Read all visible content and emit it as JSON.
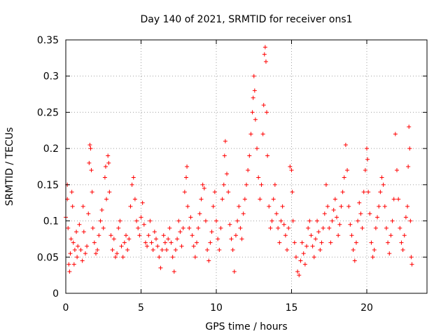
{
  "chart_data": {
    "type": "scatter",
    "title": "Day 140 of 2021, SRMTID for receiver ons1",
    "xlabel": "GPS time / hours",
    "ylabel": "SRMTID / TECUs",
    "xlim": [
      0,
      24
    ],
    "ylim": [
      0,
      0.35
    ],
    "xticks": [
      0,
      5,
      10,
      15,
      20
    ],
    "xtick_labels": [
      "0",
      "5",
      "10",
      "15",
      "20"
    ],
    "yticks": [
      0,
      0.05,
      0.1,
      0.15,
      0.2,
      0.25,
      0.3,
      0.35
    ],
    "ytick_labels": [
      "0",
      "0.05",
      "0.1",
      "0.15",
      "0.2",
      "0.25",
      "0.3",
      "0.35"
    ],
    "grid": true,
    "marker": "+",
    "color": "#ff0000",
    "series": [
      {
        "name": "SRMTID",
        "points": [
          [
            0.0,
            0.105
          ],
          [
            0.1,
            0.13
          ],
          [
            0.1,
            0.15
          ],
          [
            0.15,
            0.09
          ],
          [
            0.2,
            0.04
          ],
          [
            0.25,
            0.03
          ],
          [
            0.3,
            0.055
          ],
          [
            0.35,
            0.075
          ],
          [
            0.4,
            0.14
          ],
          [
            0.45,
            0.12
          ],
          [
            0.5,
            0.07
          ],
          [
            0.55,
            0.04
          ],
          [
            0.6,
            0.06
          ],
          [
            0.7,
            0.085
          ],
          [
            0.75,
            0.05
          ],
          [
            0.8,
            0.065
          ],
          [
            0.9,
            0.095
          ],
          [
            1.0,
            0.06
          ],
          [
            1.1,
            0.045
          ],
          [
            1.15,
            0.12
          ],
          [
            1.2,
            0.085
          ],
          [
            1.3,
            0.055
          ],
          [
            1.4,
            0.065
          ],
          [
            1.5,
            0.11
          ],
          [
            1.55,
            0.18
          ],
          [
            1.6,
            0.205
          ],
          [
            1.65,
            0.2
          ],
          [
            1.7,
            0.17
          ],
          [
            1.75,
            0.14
          ],
          [
            1.8,
            0.09
          ],
          [
            1.9,
            0.07
          ],
          [
            2.0,
            0.055
          ],
          [
            2.1,
            0.06
          ],
          [
            2.2,
            0.08
          ],
          [
            2.3,
            0.1
          ],
          [
            2.4,
            0.115
          ],
          [
            2.5,
            0.09
          ],
          [
            2.6,
            0.16
          ],
          [
            2.65,
            0.175
          ],
          [
            2.7,
            0.13
          ],
          [
            2.8,
            0.19
          ],
          [
            2.85,
            0.18
          ],
          [
            2.9,
            0.14
          ],
          [
            3.0,
            0.08
          ],
          [
            3.1,
            0.06
          ],
          [
            3.2,
            0.075
          ],
          [
            3.3,
            0.05
          ],
          [
            3.4,
            0.055
          ],
          [
            3.5,
            0.09
          ],
          [
            3.6,
            0.1
          ],
          [
            3.7,
            0.065
          ],
          [
            3.8,
            0.05
          ],
          [
            3.9,
            0.07
          ],
          [
            4.0,
            0.08
          ],
          [
            4.1,
            0.06
          ],
          [
            4.2,
            0.075
          ],
          [
            4.3,
            0.12
          ],
          [
            4.4,
            0.15
          ],
          [
            4.5,
            0.16
          ],
          [
            4.6,
            0.13
          ],
          [
            4.7,
            0.1
          ],
          [
            4.8,
            0.09
          ],
          [
            4.9,
            0.08
          ],
          [
            5.0,
            0.105
          ],
          [
            5.1,
            0.125
          ],
          [
            5.2,
            0.095
          ],
          [
            5.3,
            0.07
          ],
          [
            5.4,
            0.065
          ],
          [
            5.5,
            0.08
          ],
          [
            5.6,
            0.1
          ],
          [
            5.7,
            0.07
          ],
          [
            5.8,
            0.06
          ],
          [
            5.9,
            0.085
          ],
          [
            6.0,
            0.075
          ],
          [
            6.1,
            0.065
          ],
          [
            6.2,
            0.05
          ],
          [
            6.3,
            0.035
          ],
          [
            6.4,
            0.06
          ],
          [
            6.5,
            0.08
          ],
          [
            6.6,
            0.07
          ],
          [
            6.7,
            0.06
          ],
          [
            6.8,
            0.075
          ],
          [
            6.9,
            0.09
          ],
          [
            7.0,
            0.07
          ],
          [
            7.1,
            0.05
          ],
          [
            7.2,
            0.03
          ],
          [
            7.3,
            0.06
          ],
          [
            7.4,
            0.075
          ],
          [
            7.5,
            0.1
          ],
          [
            7.6,
            0.085
          ],
          [
            7.7,
            0.065
          ],
          [
            7.8,
            0.09
          ],
          [
            7.9,
            0.14
          ],
          [
            8.0,
            0.16
          ],
          [
            8.05,
            0.175
          ],
          [
            8.1,
            0.12
          ],
          [
            8.2,
            0.09
          ],
          [
            8.3,
            0.105
          ],
          [
            8.4,
            0.08
          ],
          [
            8.5,
            0.065
          ],
          [
            8.6,
            0.05
          ],
          [
            8.7,
            0.07
          ],
          [
            8.8,
            0.09
          ],
          [
            8.9,
            0.11
          ],
          [
            9.0,
            0.13
          ],
          [
            9.1,
            0.15
          ],
          [
            9.2,
            0.145
          ],
          [
            9.3,
            0.1
          ],
          [
            9.4,
            0.06
          ],
          [
            9.5,
            0.045
          ],
          [
            9.6,
            0.07
          ],
          [
            9.7,
            0.085
          ],
          [
            9.8,
            0.12
          ],
          [
            9.9,
            0.14
          ],
          [
            10.0,
            0.1
          ],
          [
            10.1,
            0.075
          ],
          [
            10.2,
            0.06
          ],
          [
            10.3,
            0.09
          ],
          [
            10.4,
            0.13
          ],
          [
            10.5,
            0.15
          ],
          [
            10.55,
            0.19
          ],
          [
            10.6,
            0.21
          ],
          [
            10.7,
            0.165
          ],
          [
            10.8,
            0.14
          ],
          [
            10.9,
            0.095
          ],
          [
            11.0,
            0.075
          ],
          [
            11.1,
            0.06
          ],
          [
            11.2,
            0.03
          ],
          [
            11.3,
            0.08
          ],
          [
            11.4,
            0.1
          ],
          [
            11.5,
            0.12
          ],
          [
            11.6,
            0.09
          ],
          [
            11.7,
            0.075
          ],
          [
            11.8,
            0.11
          ],
          [
            11.9,
            0.13
          ],
          [
            12.0,
            0.15
          ],
          [
            12.1,
            0.17
          ],
          [
            12.2,
            0.19
          ],
          [
            12.3,
            0.22
          ],
          [
            12.4,
            0.25
          ],
          [
            12.45,
            0.27
          ],
          [
            12.5,
            0.3
          ],
          [
            12.55,
            0.28
          ],
          [
            12.6,
            0.24
          ],
          [
            12.7,
            0.2
          ],
          [
            12.8,
            0.16
          ],
          [
            12.9,
            0.13
          ],
          [
            13.0,
            0.15
          ],
          [
            13.1,
            0.22
          ],
          [
            13.15,
            0.26
          ],
          [
            13.2,
            0.33
          ],
          [
            13.25,
            0.34
          ],
          [
            13.3,
            0.32
          ],
          [
            13.35,
            0.25
          ],
          [
            13.4,
            0.19
          ],
          [
            13.5,
            0.12
          ],
          [
            13.6,
            0.09
          ],
          [
            13.7,
            0.1
          ],
          [
            13.8,
            0.13
          ],
          [
            13.9,
            0.15
          ],
          [
            14.0,
            0.11
          ],
          [
            14.1,
            0.09
          ],
          [
            14.2,
            0.07
          ],
          [
            14.3,
            0.1
          ],
          [
            14.4,
            0.12
          ],
          [
            14.5,
            0.095
          ],
          [
            14.6,
            0.08
          ],
          [
            14.7,
            0.06
          ],
          [
            14.8,
            0.09
          ],
          [
            14.9,
            0.175
          ],
          [
            15.0,
            0.17
          ],
          [
            15.05,
            0.14
          ],
          [
            15.1,
            0.1
          ],
          [
            15.2,
            0.07
          ],
          [
            15.3,
            0.05
          ],
          [
            15.4,
            0.03
          ],
          [
            15.5,
            0.025
          ],
          [
            15.6,
            0.045
          ],
          [
            15.7,
            0.07
          ],
          [
            15.8,
            0.055
          ],
          [
            15.9,
            0.04
          ],
          [
            16.0,
            0.065
          ],
          [
            16.1,
            0.09
          ],
          [
            16.2,
            0.1
          ],
          [
            16.3,
            0.08
          ],
          [
            16.4,
            0.065
          ],
          [
            16.5,
            0.05
          ],
          [
            16.6,
            0.075
          ],
          [
            16.7,
            0.1
          ],
          [
            16.8,
            0.085
          ],
          [
            16.9,
            0.06
          ],
          [
            17.0,
            0.07
          ],
          [
            17.1,
            0.09
          ],
          [
            17.2,
            0.11
          ],
          [
            17.3,
            0.15
          ],
          [
            17.4,
            0.12
          ],
          [
            17.5,
            0.09
          ],
          [
            17.6,
            0.07
          ],
          [
            17.7,
            0.1
          ],
          [
            17.8,
            0.115
          ],
          [
            17.9,
            0.13
          ],
          [
            18.0,
            0.105
          ],
          [
            18.1,
            0.08
          ],
          [
            18.2,
            0.095
          ],
          [
            18.3,
            0.12
          ],
          [
            18.4,
            0.14
          ],
          [
            18.5,
            0.16
          ],
          [
            18.6,
            0.205
          ],
          [
            18.7,
            0.17
          ],
          [
            18.8,
            0.12
          ],
          [
            18.9,
            0.095
          ],
          [
            19.0,
            0.08
          ],
          [
            19.1,
            0.06
          ],
          [
            19.2,
            0.045
          ],
          [
            19.3,
            0.07
          ],
          [
            19.4,
            0.1
          ],
          [
            19.5,
            0.125
          ],
          [
            19.6,
            0.11
          ],
          [
            19.7,
            0.09
          ],
          [
            19.8,
            0.14
          ],
          [
            19.9,
            0.17
          ],
          [
            20.0,
            0.2
          ],
          [
            20.05,
            0.185
          ],
          [
            20.1,
            0.14
          ],
          [
            20.2,
            0.11
          ],
          [
            20.3,
            0.07
          ],
          [
            20.4,
            0.05
          ],
          [
            20.5,
            0.06
          ],
          [
            20.6,
            0.09
          ],
          [
            20.7,
            0.105
          ],
          [
            20.8,
            0.12
          ],
          [
            20.9,
            0.14
          ],
          [
            21.0,
            0.16
          ],
          [
            21.1,
            0.15
          ],
          [
            21.2,
            0.12
          ],
          [
            21.3,
            0.09
          ],
          [
            21.4,
            0.07
          ],
          [
            21.5,
            0.055
          ],
          [
            21.6,
            0.08
          ],
          [
            21.7,
            0.1
          ],
          [
            21.8,
            0.13
          ],
          [
            21.9,
            0.22
          ],
          [
            22.0,
            0.17
          ],
          [
            22.1,
            0.13
          ],
          [
            22.2,
            0.09
          ],
          [
            22.3,
            0.07
          ],
          [
            22.4,
            0.06
          ],
          [
            22.5,
            0.08
          ],
          [
            22.6,
            0.105
          ],
          [
            22.7,
            0.12
          ],
          [
            22.75,
            0.175
          ],
          [
            22.8,
            0.23
          ],
          [
            22.85,
            0.2
          ],
          [
            22.9,
            0.1
          ],
          [
            22.95,
            0.05
          ],
          [
            23.0,
            0.04
          ]
        ]
      }
    ]
  }
}
